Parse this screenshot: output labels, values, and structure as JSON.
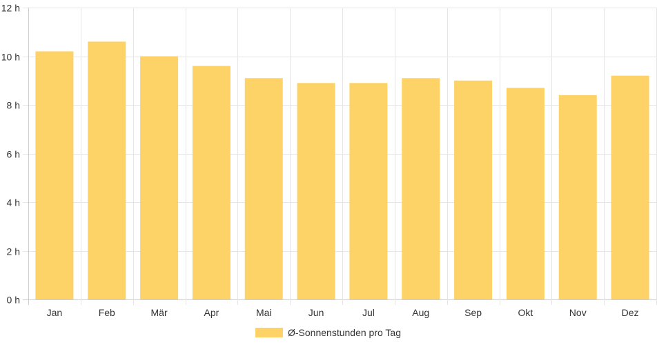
{
  "chart_data": {
    "type": "bar",
    "categories": [
      "Jan",
      "Feb",
      "Mär",
      "Apr",
      "Mai",
      "Jun",
      "Jul",
      "Aug",
      "Sep",
      "Okt",
      "Nov",
      "Dez"
    ],
    "series": [
      {
        "name": "Ø-Sonnenstunden pro Tag",
        "values": [
          10.2,
          10.6,
          10.0,
          9.6,
          9.1,
          8.9,
          8.9,
          9.1,
          9.0,
          8.7,
          8.4,
          9.2
        ]
      }
    ],
    "y_ticks": [
      "0 h",
      "2 h",
      "4 h",
      "6 h",
      "8 h",
      "10 h",
      "12 h"
    ],
    "ylim": [
      0,
      12
    ],
    "grid": true,
    "legend_position": "bottom",
    "colors": {
      "bar": "#fdd267",
      "grid": "#e5e5e5",
      "axis": "#cccccc",
      "text": "#333333"
    }
  }
}
